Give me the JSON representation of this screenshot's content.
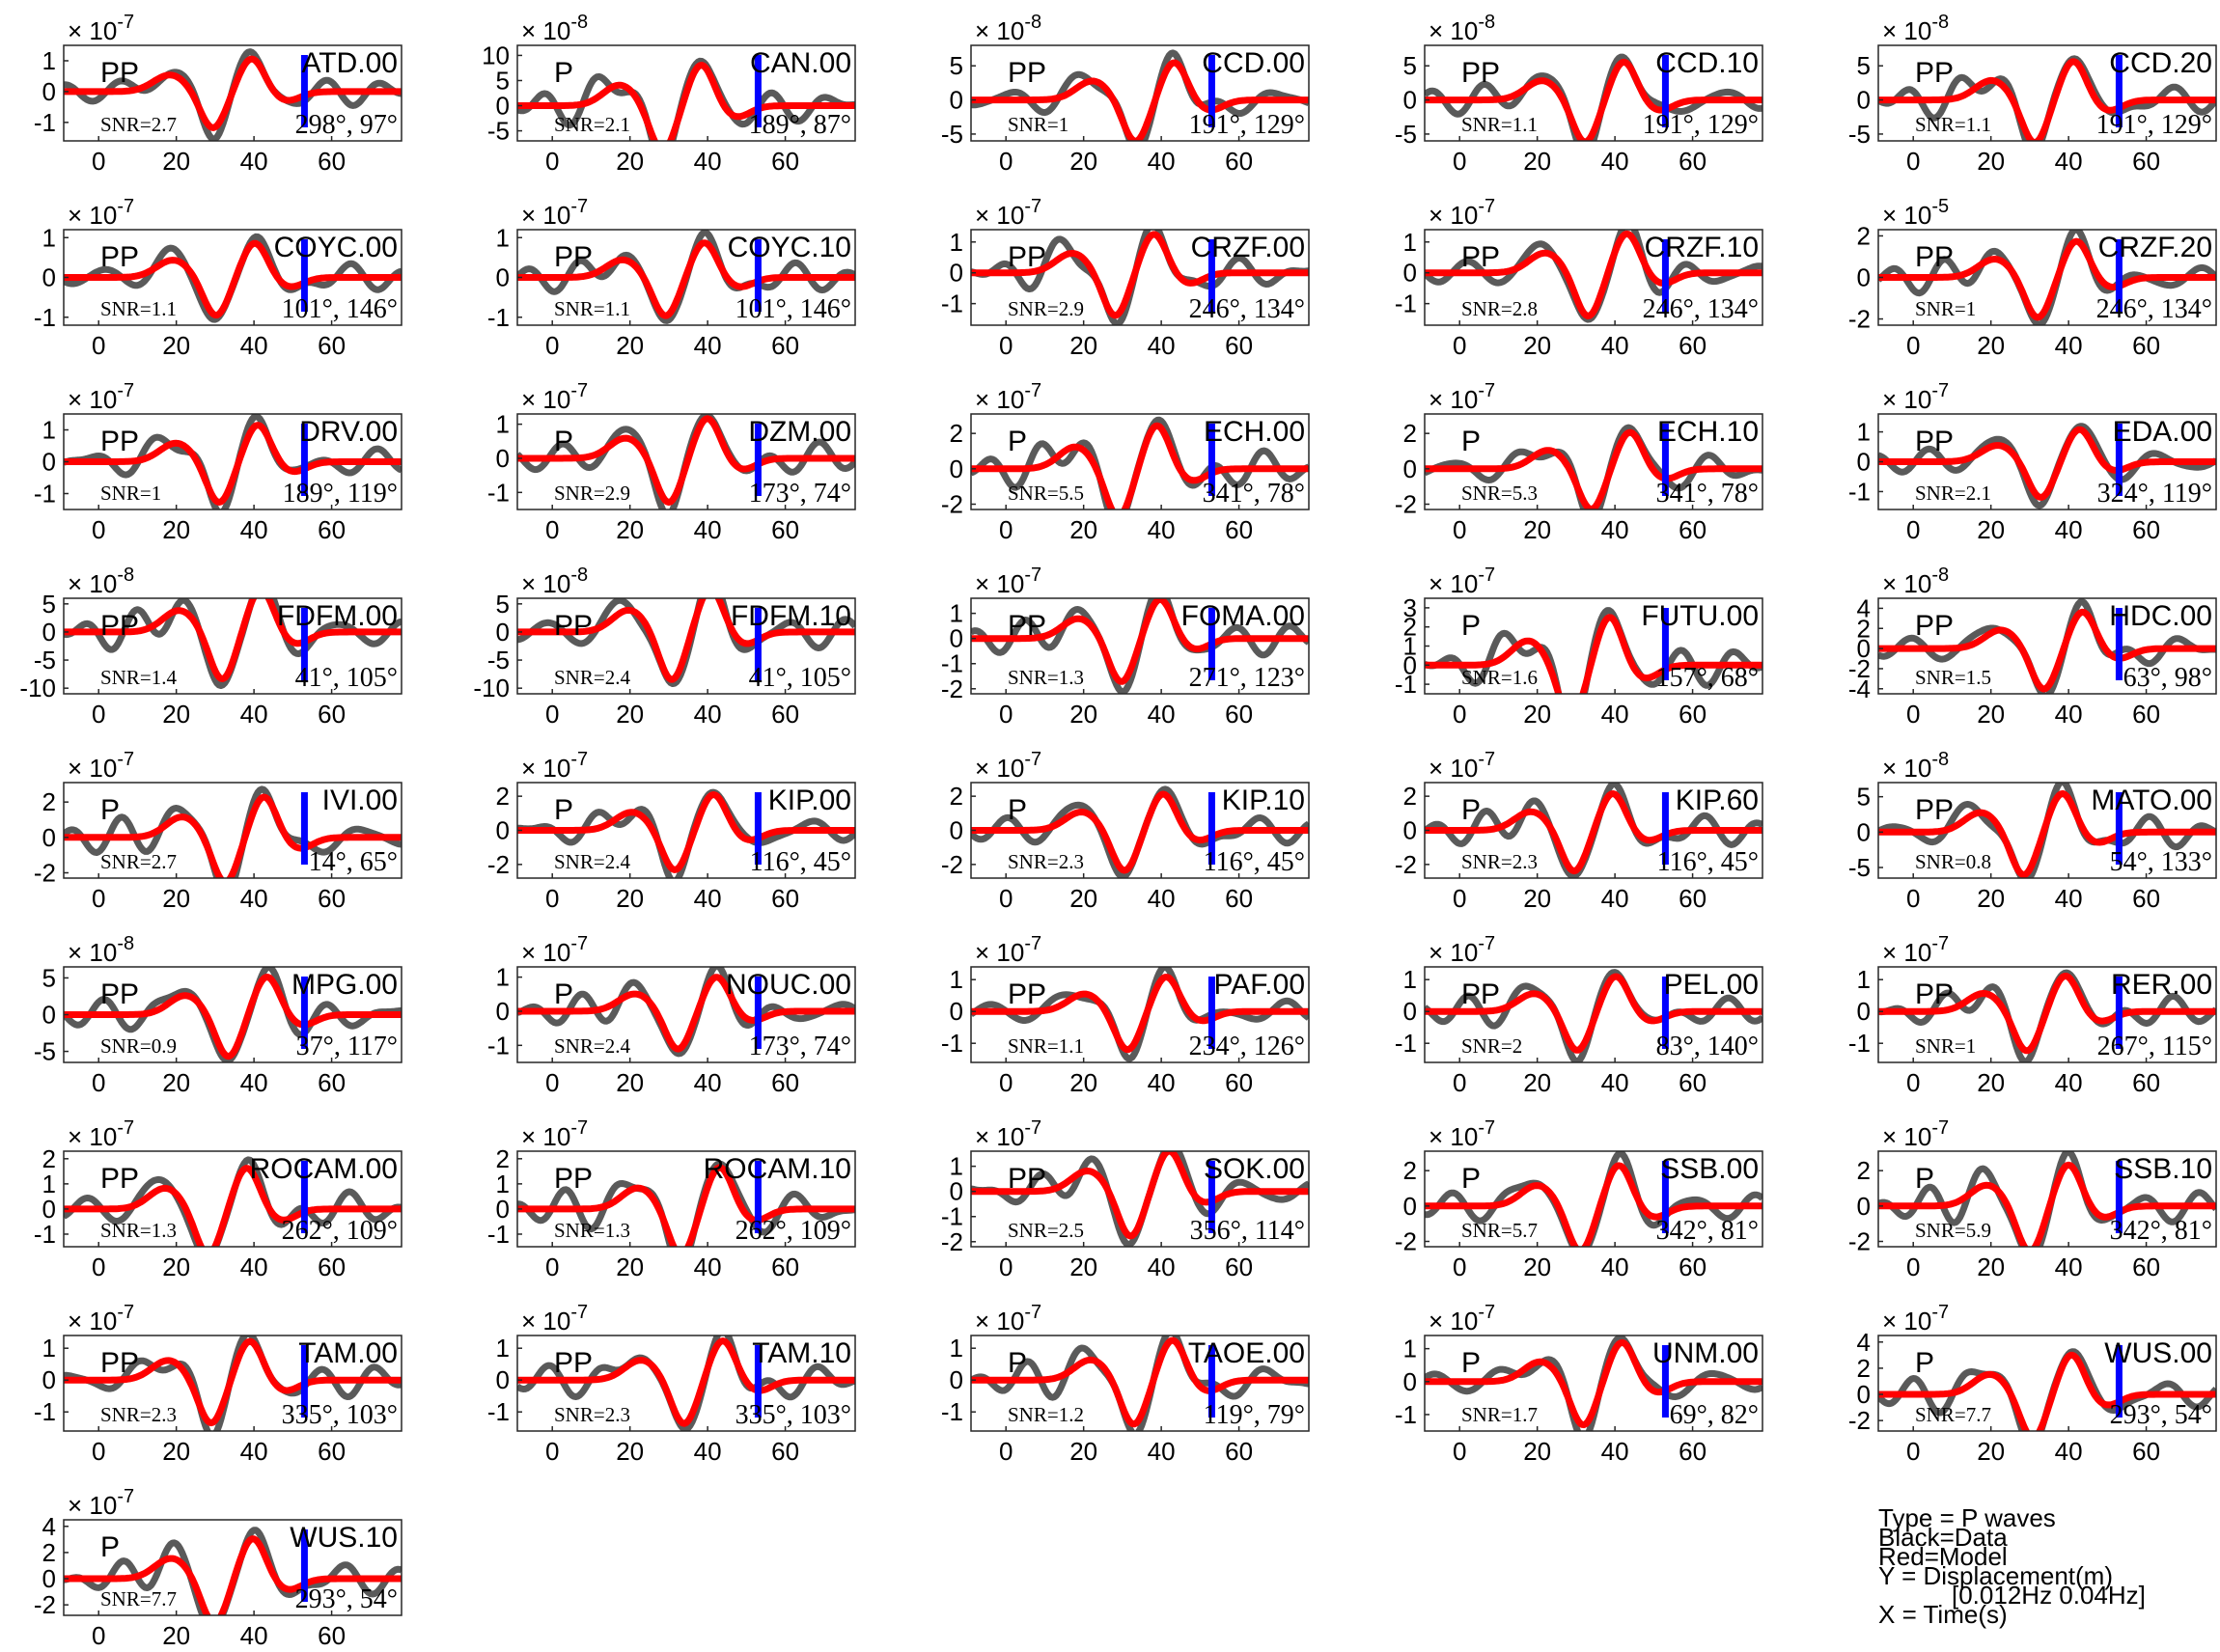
{
  "chart_data": {
    "type": "line",
    "series_legend": {
      "data": "Black=Data",
      "model": "Red=Model"
    },
    "colors": {
      "data": "#5a5a5a",
      "model": "#ff0000",
      "pick": "#0000ff",
      "axis": "#262626"
    },
    "legend": {
      "type": "Type = P waves",
      "black": "Black=Data",
      "red": "Red=Model",
      "y": "Y = Displacement(m)",
      "band": "[0.012Hz 0.04Hz]",
      "x": "X = Time(s)"
    },
    "x_ticks": [
      "0",
      "20",
      "40",
      "60"
    ],
    "xlim": [
      -9,
      78
    ],
    "pick_time": 53,
    "panels": [
      {
        "station": "ATD.00",
        "phase": "PP",
        "snr": "SNR=2.7",
        "azimuth": "298°, 97°",
        "exponent": "× 10<sup>-7</sup>",
        "exp_text": "-7",
        "yticks": [
          "1",
          "0",
          "-1"
        ],
        "ytick_values": [
          1,
          0,
          -1
        ],
        "ylim": [
          -1.6,
          1.5
        ]
      },
      {
        "station": "CAN.00",
        "phase": "P",
        "snr": "SNR=2.1",
        "azimuth": "189°, 87°",
        "exp_text": "-8",
        "yticks": [
          "10",
          "5",
          "0",
          "-5"
        ],
        "ytick_values": [
          10,
          5,
          0,
          -5
        ],
        "ylim": [
          -7,
          12
        ]
      },
      {
        "station": "CCD.00",
        "phase": "PP",
        "snr": "SNR=1",
        "azimuth": "191°, 129°",
        "exp_text": "-8",
        "yticks": [
          "5",
          "0",
          "-5"
        ],
        "ytick_values": [
          5,
          0,
          -5
        ],
        "ylim": [
          -6,
          8
        ]
      },
      {
        "station": "CCD.10",
        "phase": "PP",
        "snr": "SNR=1.1",
        "azimuth": "191°, 129°",
        "exp_text": "-8",
        "yticks": [
          "5",
          "0",
          "-5"
        ],
        "ytick_values": [
          5,
          0,
          -5
        ],
        "ylim": [
          -6,
          8
        ]
      },
      {
        "station": "CCD.20",
        "phase": "PP",
        "snr": "SNR=1.1",
        "azimuth": "191°, 129°",
        "exp_text": "-8",
        "yticks": [
          "5",
          "0",
          "-5"
        ],
        "ytick_values": [
          5,
          0,
          -5
        ],
        "ylim": [
          -6,
          8
        ]
      },
      {
        "station": "COYC.00",
        "phase": "PP",
        "snr": "SNR=1.1",
        "azimuth": "101°, 146°",
        "exp_text": "-7",
        "yticks": [
          "1",
          "0",
          "-1"
        ],
        "ytick_values": [
          1,
          0,
          -1
        ],
        "ylim": [
          -1.2,
          1.2
        ]
      },
      {
        "station": "COYC.10",
        "phase": "PP",
        "snr": "SNR=1.1",
        "azimuth": "101°, 146°",
        "exp_text": "-7",
        "yticks": [
          "1",
          "0",
          "-1"
        ],
        "ytick_values": [
          1,
          0,
          -1
        ],
        "ylim": [
          -1.2,
          1.2
        ]
      },
      {
        "station": "CRZF.00",
        "phase": "PP",
        "snr": "SNR=2.9",
        "azimuth": "246°, 134°",
        "exp_text": "-7",
        "yticks": [
          "1",
          "0",
          "-1"
        ],
        "ytick_values": [
          1,
          0,
          -1
        ],
        "ylim": [
          -1.7,
          1.4
        ]
      },
      {
        "station": "CRZF.10",
        "phase": "PP",
        "snr": "SNR=2.8",
        "azimuth": "246°, 134°",
        "exp_text": "-7",
        "yticks": [
          "1",
          "0",
          "-1"
        ],
        "ytick_values": [
          1,
          0,
          -1
        ],
        "ylim": [
          -1.7,
          1.4
        ]
      },
      {
        "station": "CRZF.20",
        "phase": "PP",
        "snr": "SNR=1",
        "azimuth": "246°, 134°",
        "exp_text": "-5",
        "yticks": [
          "2",
          "0",
          "-2"
        ],
        "ytick_values": [
          2,
          0,
          -2
        ],
        "ylim": [
          -2.3,
          2.3
        ]
      },
      {
        "station": "DRV.00",
        "phase": "PP",
        "snr": "SNR=1",
        "azimuth": "189°, 119°",
        "exp_text": "-7",
        "yticks": [
          "1",
          "0",
          "-1"
        ],
        "ytick_values": [
          1,
          0,
          -1
        ],
        "ylim": [
          -1.5,
          1.5
        ]
      },
      {
        "station": "DZM.00",
        "phase": "P",
        "snr": "SNR=2.9",
        "azimuth": "173°, 74°",
        "exp_text": "-7",
        "yticks": [
          "1",
          "0",
          "-1"
        ],
        "ytick_values": [
          1,
          0,
          -1
        ],
        "ylim": [
          -1.5,
          1.3
        ]
      },
      {
        "station": "ECH.00",
        "phase": "P",
        "snr": "SNR=5.5",
        "azimuth": "341°, 78°",
        "exp_text": "-7",
        "yticks": [
          "2",
          "0",
          "-2"
        ],
        "ytick_values": [
          2,
          0,
          -2
        ],
        "ylim": [
          -2.3,
          3.1
        ]
      },
      {
        "station": "ECH.10",
        "phase": "P",
        "snr": "SNR=5.3",
        "azimuth": "341°, 78°",
        "exp_text": "-7",
        "yticks": [
          "2",
          "0",
          "-2"
        ],
        "ytick_values": [
          2,
          0,
          -2
        ],
        "ylim": [
          -2.3,
          3.1
        ]
      },
      {
        "station": "EDA.00",
        "phase": "PP",
        "snr": "SNR=2.1",
        "azimuth": "324°, 119°",
        "exp_text": "-7",
        "yticks": [
          "1",
          "0",
          "-1"
        ],
        "ytick_values": [
          1,
          0,
          -1
        ],
        "ylim": [
          -1.6,
          1.6
        ]
      },
      {
        "station": "FDFM.00",
        "phase": "PP",
        "snr": "SNR=1.4",
        "azimuth": "41°, 105°",
        "exp_text": "-8",
        "yticks": [
          "5",
          "0",
          "-5",
          "-10"
        ],
        "ytick_values": [
          5,
          0,
          -5,
          -10
        ],
        "ylim": [
          -11,
          6
        ]
      },
      {
        "station": "FDFM.10",
        "phase": "PP",
        "snr": "SNR=2.4",
        "azimuth": "41°, 105°",
        "exp_text": "-8",
        "yticks": [
          "5",
          "0",
          "-5",
          "-10"
        ],
        "ytick_values": [
          5,
          0,
          -5,
          -10
        ],
        "ylim": [
          -11,
          6
        ]
      },
      {
        "station": "FOMA.00",
        "phase": "PP",
        "snr": "SNR=1.3",
        "azimuth": "271°, 123°",
        "exp_text": "-7",
        "yticks": [
          "1",
          "0",
          "-1",
          "-2"
        ],
        "ytick_values": [
          1,
          0,
          -1,
          -2
        ],
        "ylim": [
          -2.2,
          1.6
        ]
      },
      {
        "station": "FUTU.00",
        "phase": "P",
        "snr": "SNR=1.6",
        "azimuth": "157°, 68°",
        "exp_text": "-7",
        "yticks": [
          "3",
          "2",
          "1",
          "0",
          "-1"
        ],
        "ytick_values": [
          3,
          2,
          1,
          0,
          -1
        ],
        "ylim": [
          -1.5,
          3.5
        ]
      },
      {
        "station": "HDC.00",
        "phase": "PP",
        "snr": "SNR=1.5",
        "azimuth": "63°, 98°",
        "exp_text": "-8",
        "yticks": [
          "4",
          "2",
          "0",
          "-2",
          "-4"
        ],
        "ytick_values": [
          4,
          2,
          0,
          -2,
          -4
        ],
        "ylim": [
          -4.5,
          5
        ]
      },
      {
        "station": "IVI.00",
        "phase": "P",
        "snr": "SNR=2.7",
        "azimuth": "14°, 65°",
        "exp_text": "-7",
        "yticks": [
          "2",
          "0",
          "-2"
        ],
        "ytick_values": [
          2,
          0,
          -2
        ],
        "ylim": [
          -2.3,
          3.1
        ]
      },
      {
        "station": "KIP.00",
        "phase": "P",
        "snr": "SNR=2.4",
        "azimuth": "116°, 45°",
        "exp_text": "-7",
        "yticks": [
          "2",
          "0",
          "-2"
        ],
        "ytick_values": [
          2,
          0,
          -2
        ],
        "ylim": [
          -2.8,
          2.8
        ]
      },
      {
        "station": "KIP.10",
        "phase": "P",
        "snr": "SNR=2.3",
        "azimuth": "116°, 45°",
        "exp_text": "-7",
        "yticks": [
          "2",
          "0",
          "-2"
        ],
        "ytick_values": [
          2,
          0,
          -2
        ],
        "ylim": [
          -2.8,
          2.8
        ]
      },
      {
        "station": "KIP.60",
        "phase": "P",
        "snr": "SNR=2.3",
        "azimuth": "116°, 45°",
        "exp_text": "-7",
        "yticks": [
          "2",
          "0",
          "-2"
        ],
        "ytick_values": [
          2,
          0,
          -2
        ],
        "ylim": [
          -2.8,
          2.8
        ]
      },
      {
        "station": "MATO.00",
        "phase": "PP",
        "snr": "SNR=0.8",
        "azimuth": "54°, 133°",
        "exp_text": "-8",
        "yticks": [
          "5",
          "0",
          "-5"
        ],
        "ytick_values": [
          5,
          0,
          -5
        ],
        "ylim": [
          -6.5,
          7
        ]
      },
      {
        "station": "MPG.00",
        "phase": "PP",
        "snr": "SNR=0.9",
        "azimuth": "37°, 117°",
        "exp_text": "-8",
        "yticks": [
          "5",
          "0",
          "-5"
        ],
        "ytick_values": [
          5,
          0,
          -5
        ],
        "ylim": [
          -6.5,
          6.5
        ]
      },
      {
        "station": "NOUC.00",
        "phase": "P",
        "snr": "SNR=2.4",
        "azimuth": "173°, 74°",
        "exp_text": "-7",
        "yticks": [
          "1",
          "0",
          "-1"
        ],
        "ytick_values": [
          1,
          0,
          -1
        ],
        "ylim": [
          -1.5,
          1.3
        ]
      },
      {
        "station": "PAF.00",
        "phase": "PP",
        "snr": "SNR=1.1",
        "azimuth": "234°, 126°",
        "exp_text": "-7",
        "yticks": [
          "1",
          "0",
          "-1"
        ],
        "ytick_values": [
          1,
          0,
          -1
        ],
        "ylim": [
          -1.6,
          1.4
        ]
      },
      {
        "station": "PEL.00",
        "phase": "PP",
        "snr": "SNR=2",
        "azimuth": "83°, 140°",
        "exp_text": "-7",
        "yticks": [
          "1",
          "0",
          "-1"
        ],
        "ytick_values": [
          1,
          0,
          -1
        ],
        "ylim": [
          -1.6,
          1.4
        ]
      },
      {
        "station": "RER.00",
        "phase": "PP",
        "snr": "SNR=1",
        "azimuth": "267°, 115°",
        "exp_text": "-7",
        "yticks": [
          "1",
          "0",
          "-1"
        ],
        "ytick_values": [
          1,
          0,
          -1
        ],
        "ylim": [
          -1.6,
          1.4
        ]
      },
      {
        "station": "ROCAM.00",
        "phase": "PP",
        "snr": "SNR=1.3",
        "azimuth": "262°, 109°",
        "exp_text": "-7",
        "yticks": [
          "2",
          "1",
          "0",
          "-1"
        ],
        "ytick_values": [
          2,
          1,
          0,
          -1
        ],
        "ylim": [
          -1.5,
          2.3
        ]
      },
      {
        "station": "ROCAM.10",
        "phase": "PP",
        "snr": "SNR=1.3",
        "azimuth": "262°, 109°",
        "exp_text": "-7",
        "yticks": [
          "2",
          "1",
          "0",
          "-1"
        ],
        "ytick_values": [
          2,
          1,
          0,
          -1
        ],
        "ylim": [
          -1.5,
          2.3
        ]
      },
      {
        "station": "SOK.00",
        "phase": "PP",
        "snr": "SNR=2.5",
        "azimuth": "356°, 114°",
        "exp_text": "-7",
        "yticks": [
          "1",
          "0",
          "-1",
          "-2"
        ],
        "ytick_values": [
          1,
          0,
          -1,
          -2
        ],
        "ylim": [
          -2.2,
          1.6
        ]
      },
      {
        "station": "SSB.00",
        "phase": "P",
        "snr": "SNR=5.7",
        "azimuth": "342°, 81°",
        "exp_text": "-7",
        "yticks": [
          "2",
          "0",
          "-2"
        ],
        "ytick_values": [
          2,
          0,
          -2
        ],
        "ylim": [
          -2.3,
          3.1
        ]
      },
      {
        "station": "SSB.10",
        "phase": "P",
        "snr": "SNR=5.9",
        "azimuth": "342°, 81°",
        "exp_text": "-7",
        "yticks": [
          "2",
          "0",
          "-2"
        ],
        "ytick_values": [
          2,
          0,
          -2
        ],
        "ylim": [
          -2.3,
          3.1
        ]
      },
      {
        "station": "TAM.00",
        "phase": "PP",
        "snr": "SNR=2.3",
        "azimuth": "335°, 103°",
        "exp_text": "-7",
        "yticks": [
          "1",
          "0",
          "-1"
        ],
        "ytick_values": [
          1,
          0,
          -1
        ],
        "ylim": [
          -1.6,
          1.4
        ]
      },
      {
        "station": "TAM.10",
        "phase": "PP",
        "snr": "SNR=2.3",
        "azimuth": "335°, 103°",
        "exp_text": "-7",
        "yticks": [
          "1",
          "0",
          "-1"
        ],
        "ytick_values": [
          1,
          0,
          -1
        ],
        "ylim": [
          -1.6,
          1.4
        ]
      },
      {
        "station": "TAOE.00",
        "phase": "P",
        "snr": "SNR=1.2",
        "azimuth": "119°, 79°",
        "exp_text": "-7",
        "yticks": [
          "1",
          "0",
          "-1"
        ],
        "ytick_values": [
          1,
          0,
          -1
        ],
        "ylim": [
          -1.6,
          1.4
        ]
      },
      {
        "station": "UNM.00",
        "phase": "P",
        "snr": "SNR=1.7",
        "azimuth": "69°, 82°",
        "exp_text": "-7",
        "yticks": [
          "1",
          "0",
          "-1"
        ],
        "ytick_values": [
          1,
          0,
          -1
        ],
        "ylim": [
          -1.5,
          1.4
        ]
      },
      {
        "station": "WUS.00",
        "phase": "P",
        "snr": "SNR=7.7",
        "azimuth": "293°, 54°",
        "exp_text": "-7",
        "yticks": [
          "4",
          "2",
          "0",
          "-2"
        ],
        "ytick_values": [
          4,
          2,
          0,
          -2
        ],
        "ylim": [
          -2.8,
          4.5
        ]
      },
      {
        "station": "WUS.10",
        "phase": "P",
        "snr": "SNR=7.7",
        "azimuth": "293°, 54°",
        "exp_text": "-7",
        "yticks": [
          "4",
          "2",
          "0",
          "-2"
        ],
        "ytick_values": [
          4,
          2,
          0,
          -2
        ],
        "ylim": [
          -2.8,
          4.5
        ]
      }
    ]
  }
}
